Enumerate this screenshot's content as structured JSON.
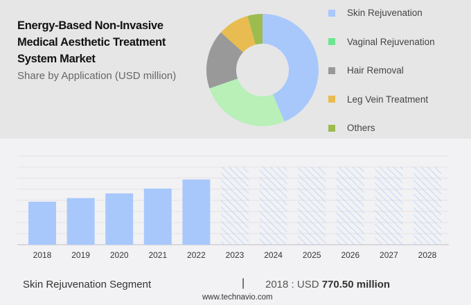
{
  "title_lines": [
    "Energy-Based Non-Invasive",
    "Medical Aesthetic Treatment",
    "System Market"
  ],
  "subtitle": "Share by Application (USD million)",
  "chart_data": [
    {
      "type": "pie",
      "donut": true,
      "labels": [
        "Skin Rejuvenation",
        "Vaginal Rejuvenation",
        "Hair Removal",
        "Leg Vein Treatment",
        "Others"
      ],
      "values": [
        43.6,
        26.1,
        17.0,
        9.0,
        4.3
      ],
      "colors": [
        "#a8c8fc",
        "#b8f0b8",
        "#999999",
        "#e8bc50",
        "#9cbc50"
      ],
      "legend_colors": [
        "#a8c8fc",
        "#6ee690",
        "#999999",
        "#e8bc50",
        "#9cbc50"
      ],
      "legend_position": "right"
    },
    {
      "type": "bar",
      "categories": [
        "2018",
        "2019",
        "2020",
        "2021",
        "2022",
        "2023",
        "2024",
        "2025",
        "2026",
        "2027",
        "2028"
      ],
      "values": [
        770.5,
        836,
        920,
        1006,
        1168,
        null,
        null,
        null,
        null,
        null,
        null
      ],
      "forecast_years": [
        "2023",
        "2024",
        "2025",
        "2026",
        "2027",
        "2028"
      ],
      "ylim": [
        0,
        1400
      ],
      "grid": true,
      "color": "#a8c8fc"
    }
  ],
  "footer": {
    "segment": "Skin Rejuvenation Segment",
    "separator": "|",
    "value_prefix": "2018 : USD ",
    "value_bold": "770.50 million",
    "source": "www.technavio.com"
  }
}
